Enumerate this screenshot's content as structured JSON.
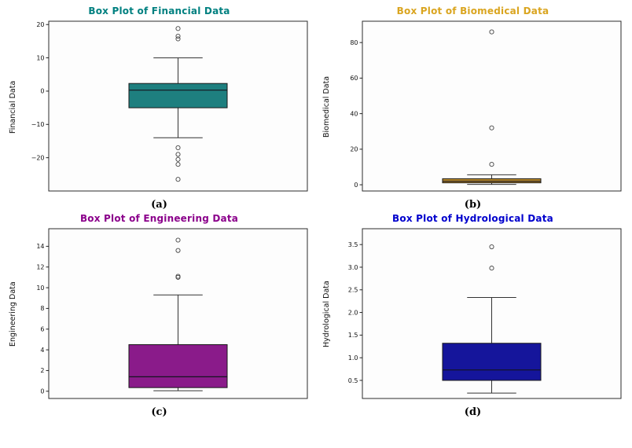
{
  "figure": {
    "background": "#ffffff"
  },
  "chart_data": [
    {
      "type": "boxplot",
      "panel": "a",
      "title": "Box Plot of Financial Data",
      "title_color": "#008080",
      "box_color": "#1e7f7f",
      "ylabel": "Financial Data",
      "caption": "(a)",
      "ylim": [
        -30,
        21
      ],
      "yticks": [
        -20,
        -10,
        0,
        10,
        20
      ],
      "ytick_labels": [
        "−20",
        "−10",
        "0",
        "10",
        "20"
      ],
      "stats": {
        "whisker_low": -14,
        "q1": -5,
        "median": 0.3,
        "q3": 2.3,
        "whisker_high": 10
      },
      "outliers": [
        18.8,
        16.5,
        15.7,
        -17,
        -19,
        -20.5,
        -22,
        -26.5
      ]
    },
    {
      "type": "boxplot",
      "panel": "b",
      "title": "Box Plot of Biomedical Data",
      "title_color": "#DAA520",
      "box_color": "#B8892B",
      "ylabel": "Biomedical Data",
      "caption": "(b)",
      "ylim": [
        -3.5,
        92
      ],
      "yticks": [
        0,
        20,
        40,
        60,
        80
      ],
      "ytick_labels": [
        "0",
        "20",
        "40",
        "60",
        "80"
      ],
      "stats": {
        "whisker_low": 0.2,
        "q1": 1.1,
        "median": 2.0,
        "q3": 3.4,
        "whisker_high": 5.6
      },
      "outliers": [
        86,
        32,
        11.5
      ]
    },
    {
      "type": "boxplot",
      "panel": "c",
      "title": "Box Plot of Engineering Data",
      "title_color": "#8B008B",
      "box_color": "#8A1B8A",
      "ylabel": "Engineering Data",
      "caption": "(c)",
      "ylim": [
        -0.7,
        15.7
      ],
      "yticks": [
        0,
        2,
        4,
        6,
        8,
        10,
        12,
        14
      ],
      "ytick_labels": [
        "0",
        "2",
        "4",
        "6",
        "8",
        "10",
        "12",
        "14"
      ],
      "stats": {
        "whisker_low": 0.05,
        "q1": 0.35,
        "median": 1.4,
        "q3": 4.5,
        "whisker_high": 9.3
      },
      "outliers": [
        14.6,
        13.6,
        11.1,
        11.0
      ]
    },
    {
      "type": "boxplot",
      "panel": "d",
      "title": "Box Plot of Hydrological Data",
      "title_color": "#0000CD",
      "box_color": "#15159B",
      "ylabel": "Hydrological Data",
      "caption": "(d)",
      "ylim": [
        0.1,
        3.85
      ],
      "yticks": [
        0.5,
        1.0,
        1.5,
        2.0,
        2.5,
        3.0,
        3.5
      ],
      "ytick_labels": [
        "0.5",
        "1.0",
        "1.5",
        "2.0",
        "2.5",
        "3.0",
        "3.5"
      ],
      "stats": {
        "whisker_low": 0.22,
        "q1": 0.5,
        "median": 0.73,
        "q3": 1.32,
        "whisker_high": 2.33
      },
      "outliers": [
        3.45,
        2.98
      ]
    }
  ]
}
